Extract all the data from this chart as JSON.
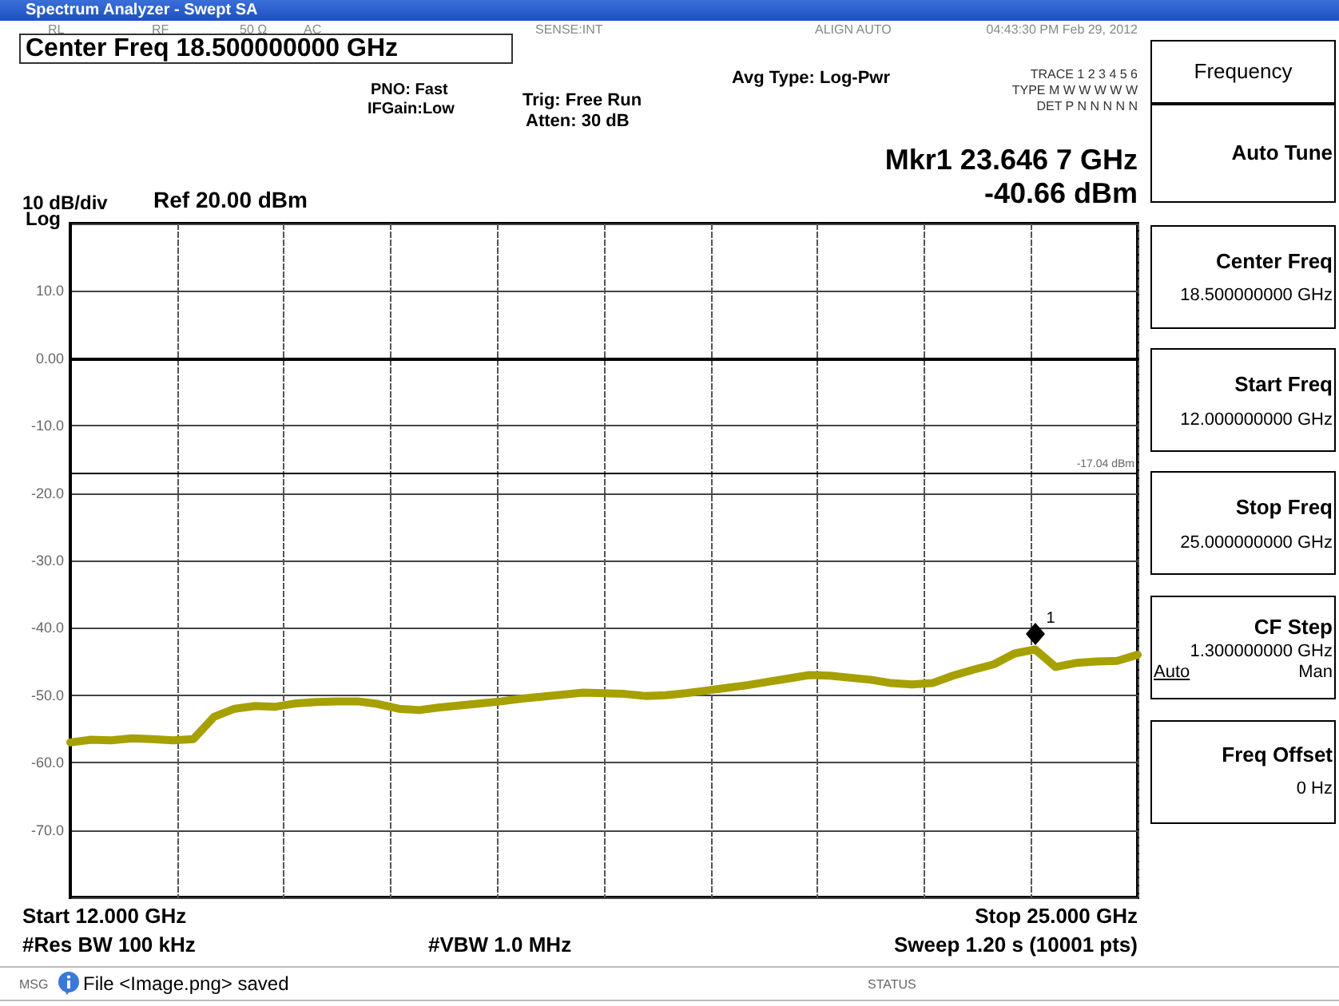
{
  "chart_data": {
    "type": "line",
    "title": "Spectrum Analyzer - Swept SA",
    "categories": [
      null,
      null,
      null,
      null,
      null,
      null,
      null,
      null,
      null,
      null,
      null,
      null,
      null,
      null,
      null,
      null,
      null,
      null,
      null,
      null,
      null,
      null,
      null,
      null,
      null,
      null,
      null,
      null,
      null,
      null,
      null,
      null,
      null,
      null,
      null,
      null,
      null,
      null,
      null,
      null,
      null,
      null,
      null,
      null,
      null,
      null,
      null,
      null,
      null,
      null,
      null,
      null,
      null
    ],
    "ylim": [
      -80,
      20
    ],
    "yticks": [
      {
        "value": -80,
        "label": null
      },
      {
        "value": -70,
        "label": "-70.0"
      },
      {
        "value": -60,
        "label": "-60.0"
      },
      {
        "value": -50,
        "label": "-50.0"
      },
      {
        "value": -40,
        "label": "-40.0"
      },
      {
        "value": -30,
        "label": "-30.0"
      },
      {
        "value": -20,
        "label": "-20.0"
      },
      {
        "value": -10,
        "label": "-10.0"
      },
      {
        "value": 0,
        "label": "0.00"
      },
      {
        "value": 10,
        "label": "10.0"
      },
      {
        "value": 20,
        "label": null
      }
    ],
    "tick_labels": "y",
    "grid": true,
    "ref_lines": [
      {
        "axis": "y",
        "value": -17.04,
        "label": "-17.04 dBm",
        "color": "#000000"
      }
    ],
    "series": [
      {
        "color": "#a6a000",
        "values": [
          -57,
          -56.6,
          -56.7,
          -56.4,
          -56.5,
          -56.7,
          -56.5,
          -53.2,
          -52,
          -51.6,
          -51.7,
          -51.2,
          -51,
          -50.9,
          -50.9,
          -51.3,
          -52,
          -52.2,
          -51.8,
          -51.5,
          -51.2,
          -50.9,
          -50.5,
          -50.2,
          -49.9,
          -49.6,
          -49.7,
          -49.8,
          -50.1,
          -50,
          -49.7,
          -49.3,
          -48.9,
          -48.5,
          -48,
          -47.5,
          -47,
          -47.1,
          -47.4,
          -47.7,
          -48.2,
          -48.4,
          -48.2,
          -47.1,
          -46.2,
          -45.4,
          -43.8,
          -43.2,
          -45.8,
          -45.2,
          -45,
          -44.9,
          -44
        ]
      }
    ],
    "annotations": [
      "RL",
      "RF",
      "50 Ω",
      "AC",
      "SENSE:INT",
      "ALIGN AUTO",
      "04:43:30 PM Feb 29, 2012",
      "Center Freq  18.500000000 GHz",
      "PNO: Fast",
      "IFGain:Low",
      "Trig: Free Run",
      "Atten: 30 dB",
      "Avg Type: Log-Pwr",
      "TRACE 1 2 3 4 5 6",
      "TYPE M W W W W W",
      "DET P N N N N N",
      "Mkr1 23.646 7 GHz",
      "-40.66 dBm",
      "10 dB/div",
      "Ref 20.00 dBm",
      "Log",
      "Frequency",
      "Auto Tune",
      "Center Freq",
      "18.500000000 GHz",
      "Start Freq",
      "12.000000000 GHz",
      "Stop Freq",
      "25.000000000 GHz",
      "CF Step",
      "1.300000000 GHz",
      "Auto",
      "Man",
      "Freq Offset",
      "0 Hz",
      "Start 12.000 GHz",
      "#Res BW 100 kHz",
      "#VBW 1.0 MHz",
      "Stop 25.000 GHz",
      "Sweep  1.20 s (10001 pts)",
      "MSG",
      "File <Image.png> saved",
      "STATUS",
      "1"
    ]
  }
}
